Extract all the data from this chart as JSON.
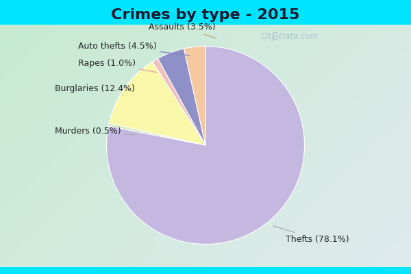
{
  "title": "Crimes by type - 2015",
  "slices": [
    {
      "label": "Thefts (78.1%)",
      "value": 78.1,
      "color": "#c4b8e0"
    },
    {
      "label": "Murders (0.5%)",
      "value": 0.5,
      "color": "#d4e8c0"
    },
    {
      "label": "Burglaries (12.4%)",
      "value": 12.4,
      "color": "#f8f8a8"
    },
    {
      "label": "Rapes (1.0%)",
      "value": 1.0,
      "color": "#f0c0c0"
    },
    {
      "label": "Auto thefts (4.5%)",
      "value": 4.5,
      "color": "#9090c8"
    },
    {
      "label": "Assaults (3.5%)",
      "value": 3.5,
      "color": "#f5c8a0"
    }
  ],
  "title_fontsize": 16,
  "title_color": "#1a1a2e",
  "label_fontsize": 9,
  "label_color": "#222222",
  "watermark": "City-Data.com",
  "cyan_color": "#00e5ff",
  "bg_color_topleft": "#c8e8d0",
  "bg_color_center": "#e8f4f8",
  "bg_color_bottomright": "#c8dce8"
}
